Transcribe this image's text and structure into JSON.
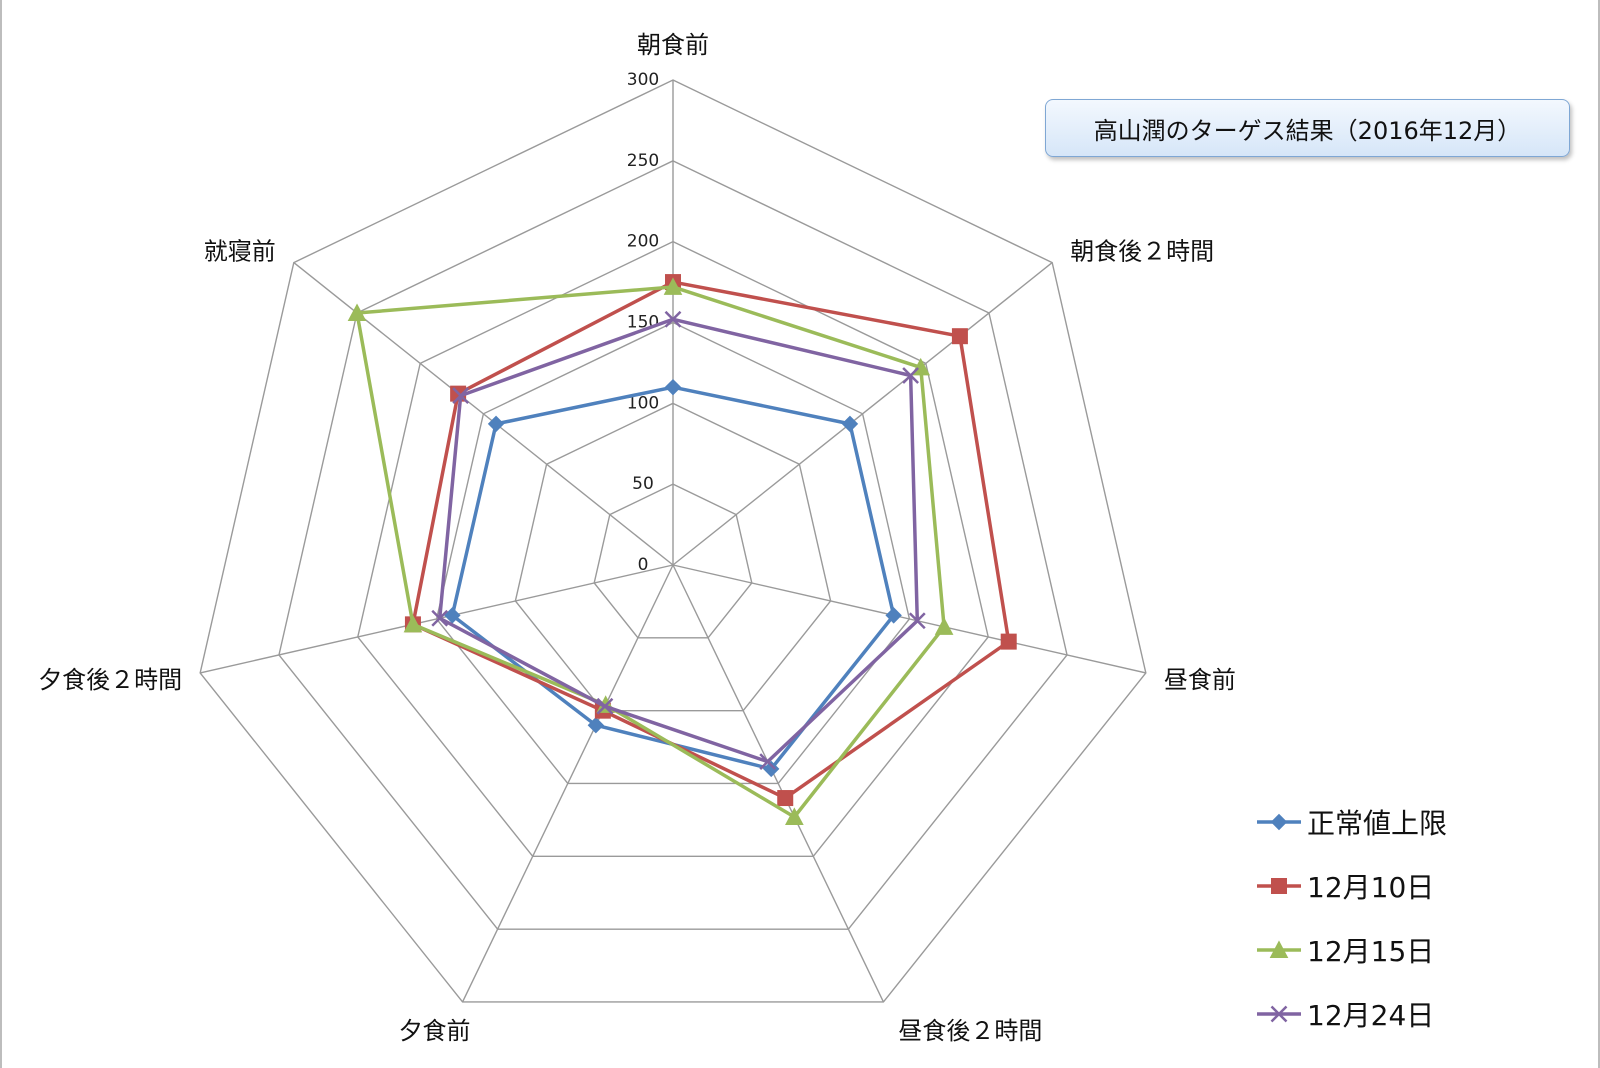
{
  "chart_data": {
    "type": "radar",
    "title": "高山潤のターゲス結果（2016年12月）",
    "categories": [
      "朝食前",
      "朝食後２時間",
      "昼食前",
      "昼食後２時間",
      "夕食前",
      "夕食後２時間",
      "就寝前"
    ],
    "rlim": [
      0,
      300
    ],
    "ticks": [
      "0",
      "50",
      "100",
      "150",
      "200",
      "250",
      "300"
    ],
    "grid": true,
    "legend_position": "bottom-right",
    "series": [
      {
        "name": "正常値上限",
        "values": [
          110,
          140,
          140,
          140,
          110,
          140,
          140
        ],
        "color": "#4f81bd",
        "marker": "diamond"
      },
      {
        "name": "12月10日",
        "values": [
          175,
          227,
          213,
          160,
          100,
          165,
          170
        ],
        "color": "#c0504d",
        "marker": "square"
      },
      {
        "name": "12月15日",
        "values": [
          172,
          196,
          172,
          173,
          96,
          165,
          250
        ],
        "color": "#9bbb59",
        "marker": "triangle"
      },
      {
        "name": "12月24日",
        "values": [
          152,
          188,
          155,
          135,
          97,
          148,
          168
        ],
        "color": "#8064a2",
        "marker": "x"
      }
    ]
  }
}
